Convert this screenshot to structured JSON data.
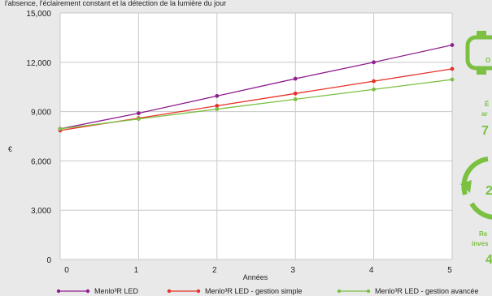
{
  "chart_data": {
    "type": "line",
    "header_text": "l'absence, l'éclairement constant et la détection de la lumière du jour",
    "title": "",
    "xlabel": "Années",
    "ylabel": "€",
    "x": [
      0,
      1,
      2,
      3,
      4,
      5
    ],
    "x_tick_labels": [
      "0",
      "1",
      "2",
      "3",
      "4",
      "5"
    ],
    "y_tick_labels": [
      "0",
      "3,000",
      "6,000",
      "9,000",
      "12,000",
      "15,000"
    ],
    "y_ticks": [
      0,
      3000,
      6000,
      9000,
      12000,
      15000
    ],
    "xlim": [
      0,
      5
    ],
    "ylim": [
      0,
      15000
    ],
    "grid": true,
    "legend_position": "bottom",
    "series": [
      {
        "name": "Menlo³R LED",
        "color": "#8e1f8e",
        "values": [
          7950,
          8900,
          9950,
          11000,
          12000,
          13050
        ]
      },
      {
        "name": "Menlo³R LED - gestion simple",
        "color": "#e8302a",
        "values": [
          7850,
          8600,
          9350,
          10100,
          10850,
          11600
        ]
      },
      {
        "name": "Menlo³R LED - gestion avancée",
        "color": "#7cc042",
        "values": [
          7950,
          8550,
          9150,
          9750,
          10350,
          10950
        ]
      }
    ]
  },
  "side_panel": {
    "badge_text": "O",
    "savings_line1": "É",
    "savings_line2": "ar",
    "savings_value": "7",
    "return_value": "2",
    "return_line1": "Re",
    "return_line2": "inves",
    "return_value_2": "4",
    "accent_color": "#7cc042"
  }
}
